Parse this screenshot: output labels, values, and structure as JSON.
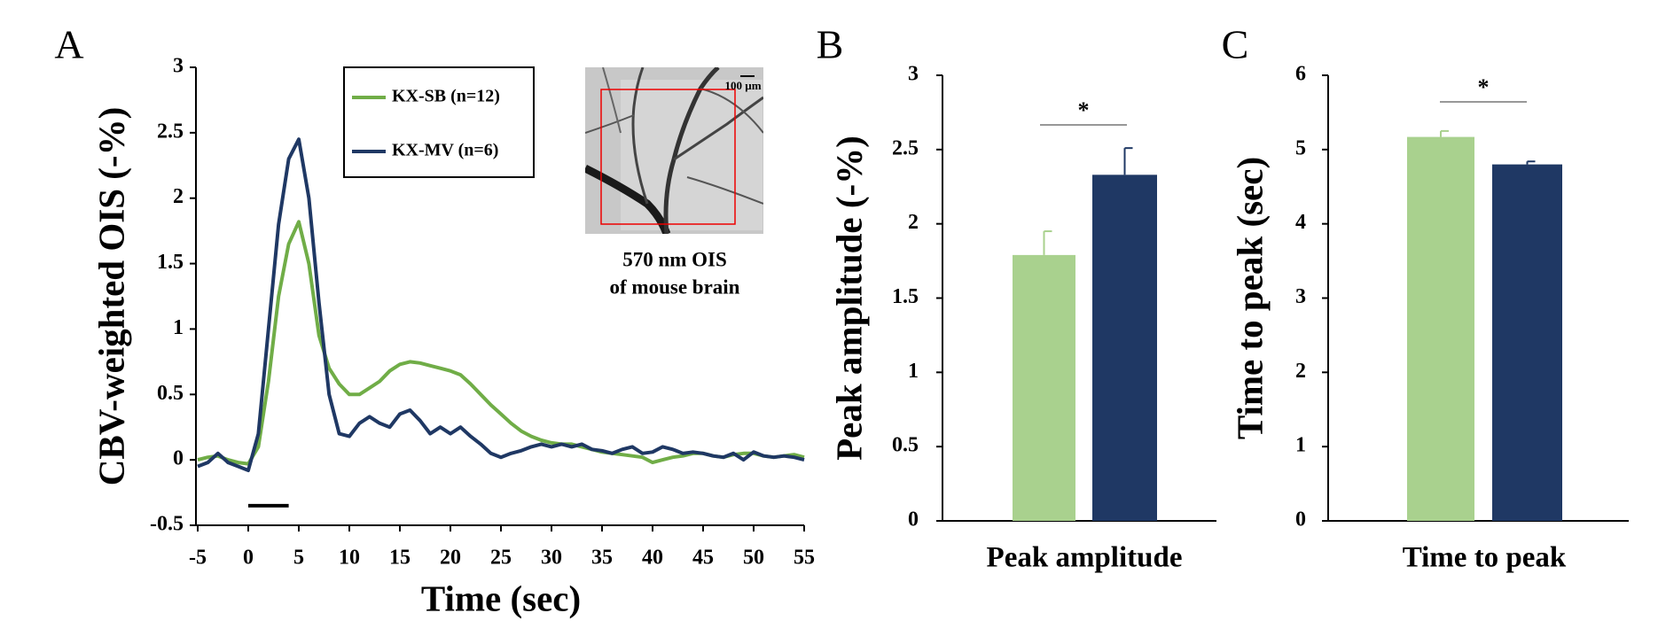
{
  "chart_data": [
    {
      "type": "line",
      "panel": "A",
      "ylabel": "CBV-weighted OIS (-%)",
      "xlabel": "Time (sec)",
      "xlim": [
        -5,
        55
      ],
      "xticks": [
        -5,
        0,
        5,
        10,
        15,
        20,
        25,
        30,
        35,
        40,
        45,
        50,
        55
      ],
      "ylim": [
        -0.5,
        3
      ],
      "yticks": [
        -0.5,
        0,
        0.5,
        1,
        1.5,
        2,
        2.5,
        3
      ],
      "x": [
        -5,
        -4,
        -3,
        -2,
        -1,
        0,
        1,
        2,
        3,
        4,
        5,
        6,
        7,
        8,
        9,
        10,
        11,
        12,
        13,
        14,
        15,
        16,
        17,
        18,
        19,
        20,
        21,
        22,
        23,
        24,
        25,
        26,
        27,
        28,
        29,
        30,
        31,
        32,
        33,
        34,
        35,
        36,
        37,
        38,
        39,
        40,
        41,
        42,
        43,
        44,
        45,
        46,
        47,
        48,
        49,
        50,
        51,
        52,
        53,
        54,
        55
      ],
      "series": [
        {
          "name": "KX-SB (n=12)",
          "color": "#70ad47",
          "values": [
            0.0,
            0.02,
            0.03,
            0.0,
            -0.02,
            -0.03,
            0.1,
            0.6,
            1.25,
            1.65,
            1.82,
            1.5,
            0.95,
            0.7,
            0.58,
            0.5,
            0.5,
            0.55,
            0.6,
            0.68,
            0.73,
            0.75,
            0.74,
            0.72,
            0.7,
            0.68,
            0.65,
            0.58,
            0.5,
            0.42,
            0.35,
            0.28,
            0.22,
            0.18,
            0.15,
            0.13,
            0.12,
            0.12,
            0.1,
            0.08,
            0.06,
            0.05,
            0.04,
            0.03,
            0.02,
            -0.02,
            0.0,
            0.02,
            0.03,
            0.05,
            0.05,
            0.03,
            0.02,
            0.04,
            0.05,
            0.05,
            0.03,
            0.02,
            0.03,
            0.04,
            0.02
          ]
        },
        {
          "name": "KX-MV (n=6)",
          "color": "#1f3864",
          "values": [
            -0.05,
            -0.02,
            0.05,
            -0.02,
            -0.05,
            -0.08,
            0.2,
            1.0,
            1.8,
            2.3,
            2.45,
            2.0,
            1.2,
            0.5,
            0.2,
            0.18,
            0.28,
            0.33,
            0.28,
            0.25,
            0.35,
            0.38,
            0.3,
            0.2,
            0.25,
            0.2,
            0.25,
            0.18,
            0.12,
            0.05,
            0.02,
            0.05,
            0.07,
            0.1,
            0.12,
            0.1,
            0.12,
            0.1,
            0.12,
            0.08,
            0.07,
            0.05,
            0.08,
            0.1,
            0.05,
            0.06,
            0.1,
            0.08,
            0.05,
            0.06,
            0.05,
            0.03,
            0.02,
            0.05,
            0.0,
            0.06,
            0.03,
            0.02,
            0.03,
            0.02,
            0.0
          ]
        }
      ],
      "stimulus": {
        "x": [
          0,
          4
        ],
        "y": -0.35
      },
      "inset": {
        "scale_label": "100 µm",
        "caption": [
          "570 nm OIS",
          "of mouse brain"
        ]
      }
    },
    {
      "type": "bar",
      "panel": "B",
      "ylabel": "Peak amplitude (-%)",
      "xlabel": "Peak amplitude",
      "ylim": [
        0,
        3
      ],
      "yticks": [
        0,
        0.5,
        1,
        1.5,
        2,
        2.5,
        3
      ],
      "series": [
        {
          "color": "#a9d18e",
          "values": [
            1.79
          ],
          "errors": [
            0.16
          ]
        },
        {
          "color": "#1f3864",
          "values": [
            2.33
          ],
          "errors": [
            0.18
          ]
        }
      ],
      "significance": "*"
    },
    {
      "type": "bar",
      "panel": "C",
      "ylabel": "Time to peak (sec)",
      "xlabel": "Time to peak",
      "ylim": [
        0,
        6
      ],
      "yticks": [
        0,
        1,
        2,
        3,
        4,
        5,
        6
      ],
      "series": [
        {
          "color": "#a9d18e",
          "values": [
            5.17
          ],
          "errors": [
            0.08
          ]
        },
        {
          "color": "#1f3864",
          "values": [
            4.8
          ],
          "errors": [
            0.04
          ]
        }
      ],
      "significance": "*"
    }
  ]
}
